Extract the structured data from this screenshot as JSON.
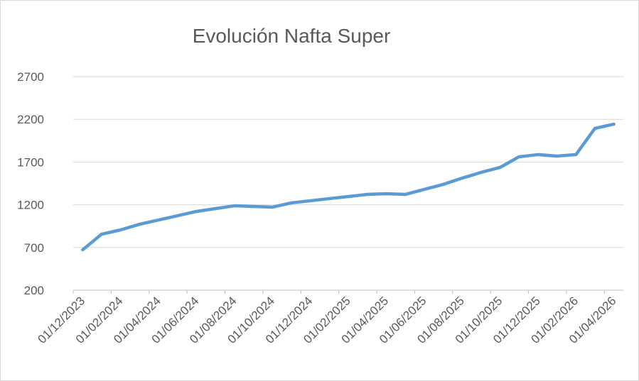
{
  "chart_data": {
    "type": "line",
    "title": "Evolución Nafta Super",
    "categories": [
      "01/12/2023",
      null,
      "01/02/2024",
      null,
      "01/04/2024",
      null,
      "01/06/2024",
      null,
      "01/08/2024",
      null,
      "01/10/2024",
      null,
      "01/12/2024",
      null,
      "01/02/2025",
      null,
      "01/04/2025",
      null,
      "01/06/2025",
      null,
      "01/08/2025",
      null,
      "01/10/2025",
      null,
      "01/12/2025",
      null,
      "01/02/2026",
      null,
      "01/04/2026"
    ],
    "series": [
      {
        "name": "Nafta Super",
        "color": "#5b9bd5",
        "values": [
          673,
          856,
          906,
          972,
          1022,
          1072,
          1122,
          1155,
          1188,
          1180,
          1172,
          1222,
          1247,
          1272,
          1296,
          1321,
          1330,
          1321,
          1380,
          1438,
          1512,
          1579,
          1637,
          1762,
          1787,
          1770,
          1787,
          2094,
          2144
        ]
      }
    ],
    "ylim": [
      200,
      2700
    ],
    "yticks": [
      200,
      700,
      1200,
      1700,
      2200,
      2700
    ],
    "grid": true
  }
}
